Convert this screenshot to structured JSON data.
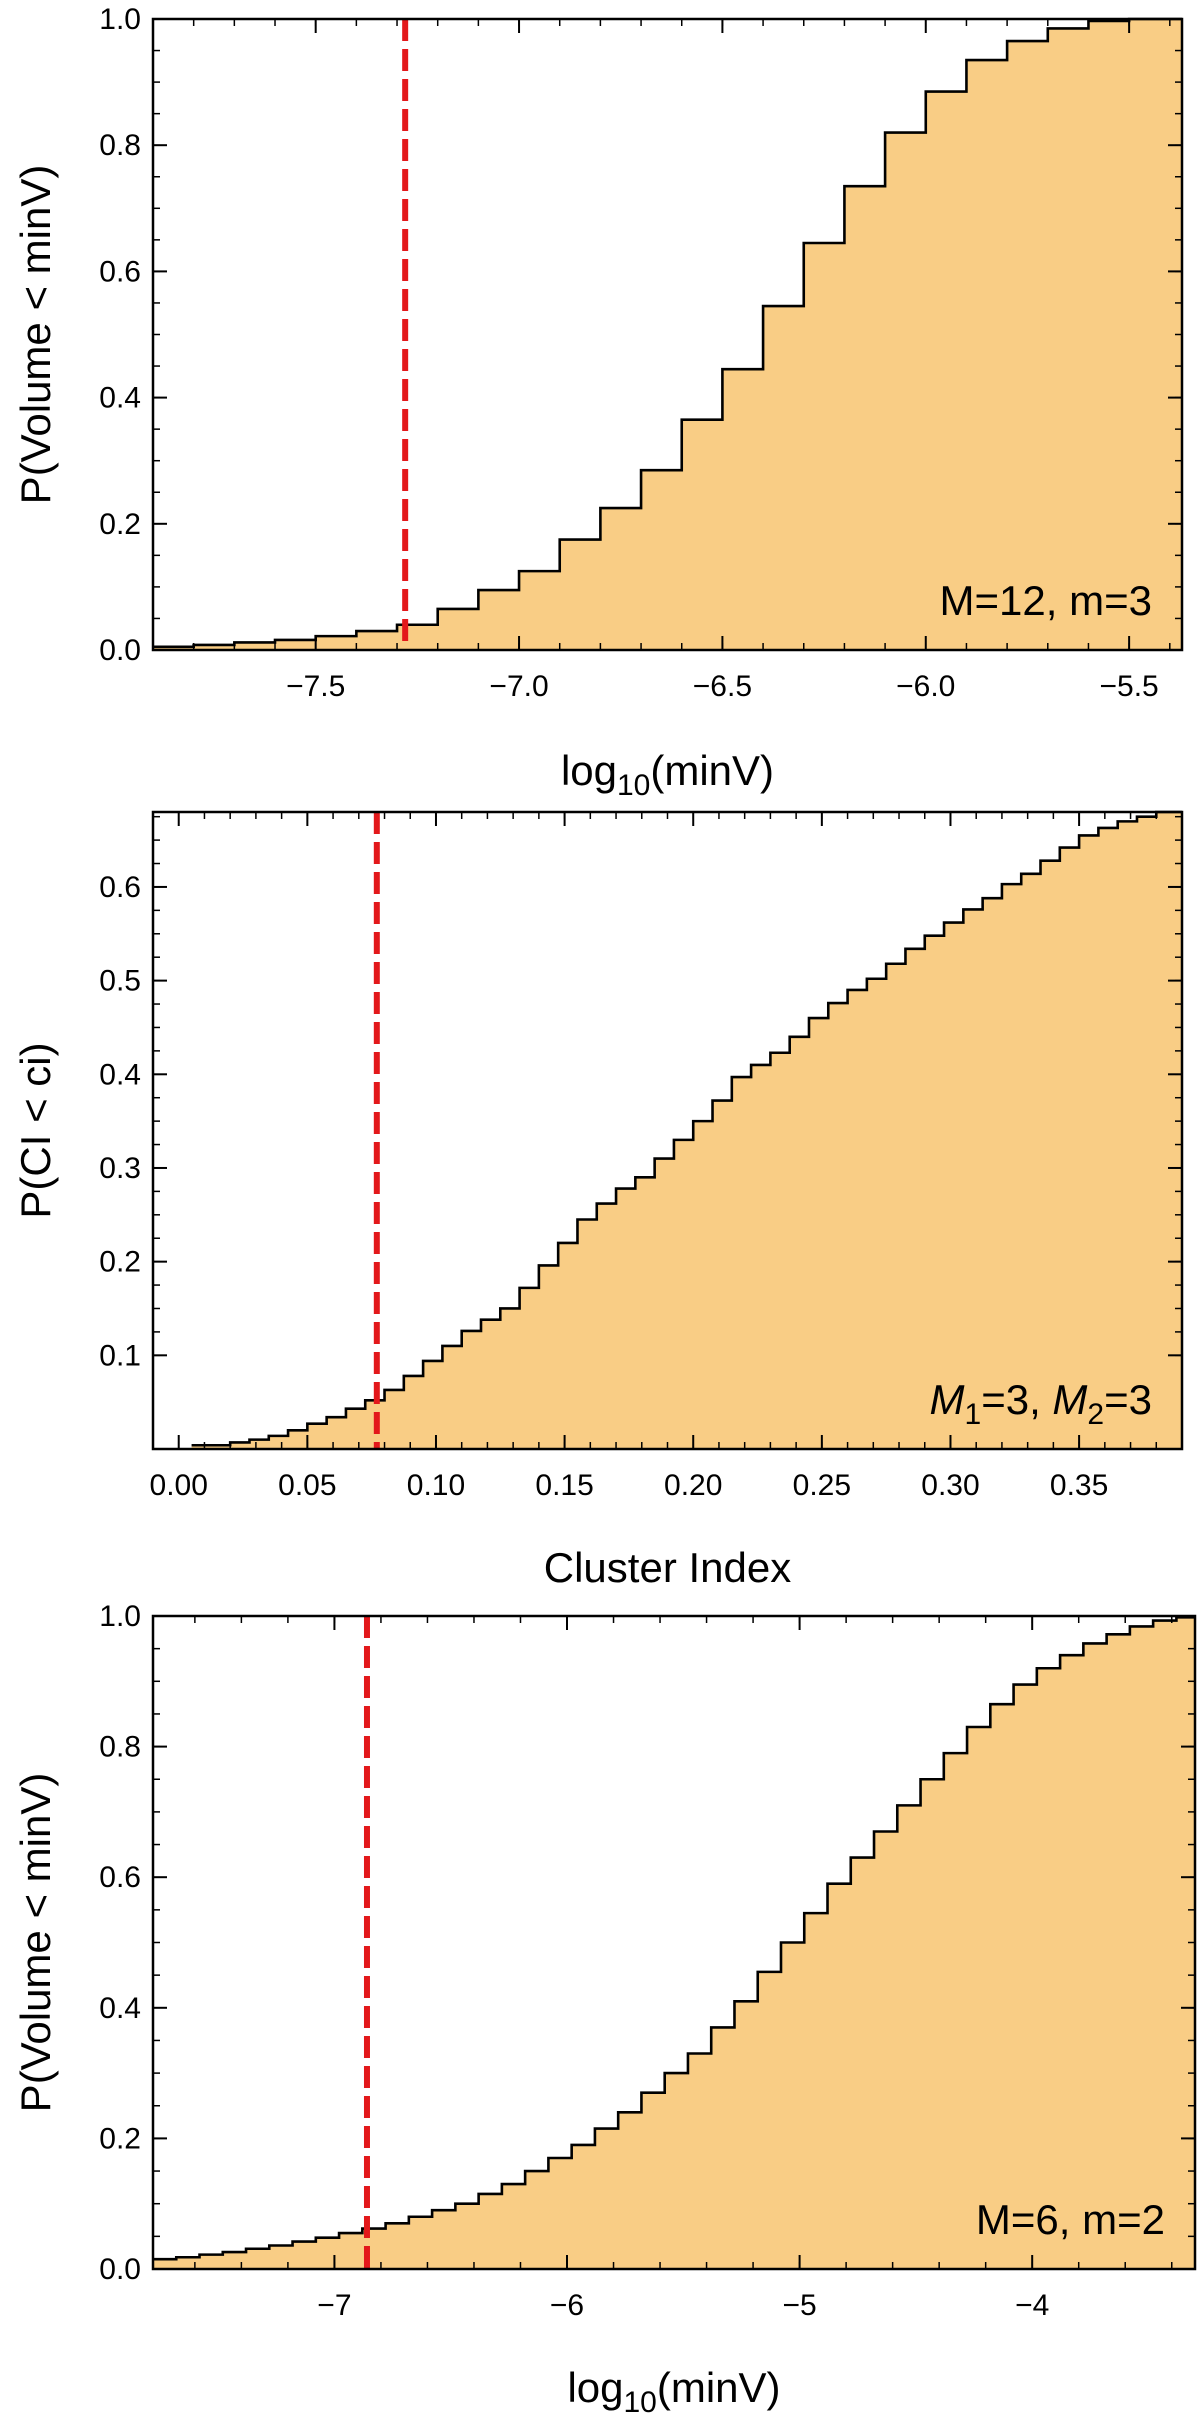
{
  "colors": {
    "fill": "#f9cd85",
    "step": "#000000",
    "marker": "#e3181b",
    "axis": "#000000"
  },
  "chart_data": [
    {
      "type": "area",
      "subtype": "cumulative-step-histogram",
      "xlabel_main": "log",
      "xlabel_sub": "10",
      "xlabel_rest": "(minV)",
      "ylabel": "P(Volume < minV)",
      "annotation": "M=12, m=3",
      "xlim": [
        -7.9,
        -5.37
      ],
      "ylim": [
        0,
        1.0
      ],
      "xticks": [
        -7.5,
        -7.0,
        -6.5,
        -6.0,
        -5.5
      ],
      "xtick_labels": [
        "−7.5",
        "−7.0",
        "−6.5",
        "−6.0",
        "−5.5"
      ],
      "yticks": [
        0,
        0.2,
        0.4,
        0.6,
        0.8,
        1.0
      ],
      "ytick_labels": [
        "0.0",
        "0.2",
        "0.4",
        "0.6",
        "0.8",
        "1.0"
      ],
      "marker_x": -7.28,
      "bin_edges": [
        -7.9,
        -7.8,
        -7.7,
        -7.6,
        -7.5,
        -7.4,
        -7.3,
        -7.2,
        -7.1,
        -7.0,
        -6.9,
        -6.8,
        -6.7,
        -6.6,
        -6.5,
        -6.4,
        -6.3,
        -6.2,
        -6.1,
        -6.0,
        -5.9,
        -5.8,
        -5.7,
        -5.6,
        -5.5,
        -5.37
      ],
      "values": [
        0.005,
        0.008,
        0.012,
        0.016,
        0.022,
        0.03,
        0.04,
        0.065,
        0.095,
        0.125,
        0.175,
        0.225,
        0.285,
        0.365,
        0.445,
        0.545,
        0.645,
        0.735,
        0.82,
        0.885,
        0.935,
        0.965,
        0.985,
        0.997,
        1.0
      ]
    },
    {
      "type": "area",
      "subtype": "cumulative-step-histogram",
      "xlabel_main": "Cluster Index",
      "xlabel_sub": "",
      "xlabel_rest": "",
      "ylabel": "P(CI < ci)",
      "annotation_parts": [
        "M",
        "1",
        "=3, ",
        "M",
        "2",
        "=3"
      ],
      "xlim": [
        -0.01,
        0.39
      ],
      "ylim": [
        0,
        0.68
      ],
      "xticks": [
        0.0,
        0.05,
        0.1,
        0.15,
        0.2,
        0.25,
        0.3,
        0.35
      ],
      "xtick_labels": [
        "0.00",
        "0.05",
        "0.10",
        "0.15",
        "0.20",
        "0.25",
        "0.30",
        "0.35"
      ],
      "yticks": [
        0.1,
        0.2,
        0.3,
        0.4,
        0.5,
        0.6
      ],
      "ytick_labels": [
        "0.1",
        "0.2",
        "0.3",
        "0.4",
        "0.5",
        "0.6"
      ],
      "marker_x": 0.077,
      "bin_edges": [
        0.005,
        0.0125,
        0.02,
        0.0275,
        0.035,
        0.0425,
        0.05,
        0.0575,
        0.065,
        0.0725,
        0.08,
        0.0875,
        0.095,
        0.1025,
        0.11,
        0.1175,
        0.125,
        0.1325,
        0.14,
        0.1475,
        0.155,
        0.1625,
        0.17,
        0.1775,
        0.185,
        0.1925,
        0.2,
        0.2075,
        0.215,
        0.2225,
        0.23,
        0.2375,
        0.245,
        0.2525,
        0.26,
        0.2675,
        0.275,
        0.2825,
        0.29,
        0.2975,
        0.305,
        0.3125,
        0.32,
        0.3275,
        0.335,
        0.3425,
        0.35,
        0.3575,
        0.365,
        0.3725,
        0.38,
        0.39
      ],
      "values": [
        0.004,
        0.004,
        0.007,
        0.01,
        0.014,
        0.02,
        0.027,
        0.034,
        0.043,
        0.052,
        0.063,
        0.078,
        0.094,
        0.11,
        0.126,
        0.138,
        0.15,
        0.172,
        0.196,
        0.22,
        0.245,
        0.262,
        0.278,
        0.29,
        0.31,
        0.33,
        0.35,
        0.372,
        0.397,
        0.41,
        0.423,
        0.44,
        0.46,
        0.476,
        0.49,
        0.502,
        0.518,
        0.534,
        0.548,
        0.562,
        0.576,
        0.588,
        0.603,
        0.614,
        0.628,
        0.642,
        0.655,
        0.663,
        0.67,
        0.675,
        0.68
      ]
    },
    {
      "type": "area",
      "subtype": "cumulative-step-histogram",
      "xlabel_main": "log",
      "xlabel_sub": "10",
      "xlabel_rest": "(minV)",
      "ylabel": "P(Volume < minV)",
      "annotation": "M=6, m=2",
      "xlim": [
        -7.78,
        -3.3
      ],
      "ylim": [
        0,
        1.0
      ],
      "xticks": [
        -7,
        -6,
        -5,
        -4
      ],
      "xtick_labels": [
        "−7",
        "−6",
        "−5",
        "−4"
      ],
      "yticks": [
        0,
        0.2,
        0.4,
        0.6,
        0.8,
        1.0
      ],
      "ytick_labels": [
        "0.0",
        "0.2",
        "0.4",
        "0.6",
        "0.8",
        "1.0"
      ],
      "marker_x": -6.86,
      "bin_edges": [
        -7.78,
        -7.68,
        -7.58,
        -7.48,
        -7.38,
        -7.28,
        -7.18,
        -7.08,
        -6.98,
        -6.88,
        -6.78,
        -6.68,
        -6.58,
        -6.48,
        -6.38,
        -6.28,
        -6.18,
        -6.08,
        -5.98,
        -5.88,
        -5.78,
        -5.68,
        -5.58,
        -5.48,
        -5.38,
        -5.28,
        -5.18,
        -5.08,
        -4.98,
        -4.88,
        -4.78,
        -4.68,
        -4.58,
        -4.48,
        -4.38,
        -4.28,
        -4.18,
        -4.08,
        -3.98,
        -3.88,
        -3.78,
        -3.68,
        -3.58,
        -3.48,
        -3.38,
        -3.3
      ],
      "values": [
        0.015,
        0.018,
        0.022,
        0.026,
        0.031,
        0.036,
        0.042,
        0.048,
        0.055,
        0.062,
        0.07,
        0.08,
        0.09,
        0.1,
        0.115,
        0.13,
        0.15,
        0.17,
        0.19,
        0.215,
        0.24,
        0.27,
        0.3,
        0.33,
        0.37,
        0.41,
        0.455,
        0.5,
        0.545,
        0.59,
        0.63,
        0.67,
        0.71,
        0.75,
        0.79,
        0.83,
        0.865,
        0.895,
        0.92,
        0.94,
        0.958,
        0.972,
        0.984,
        0.993,
        0.998
      ]
    }
  ]
}
